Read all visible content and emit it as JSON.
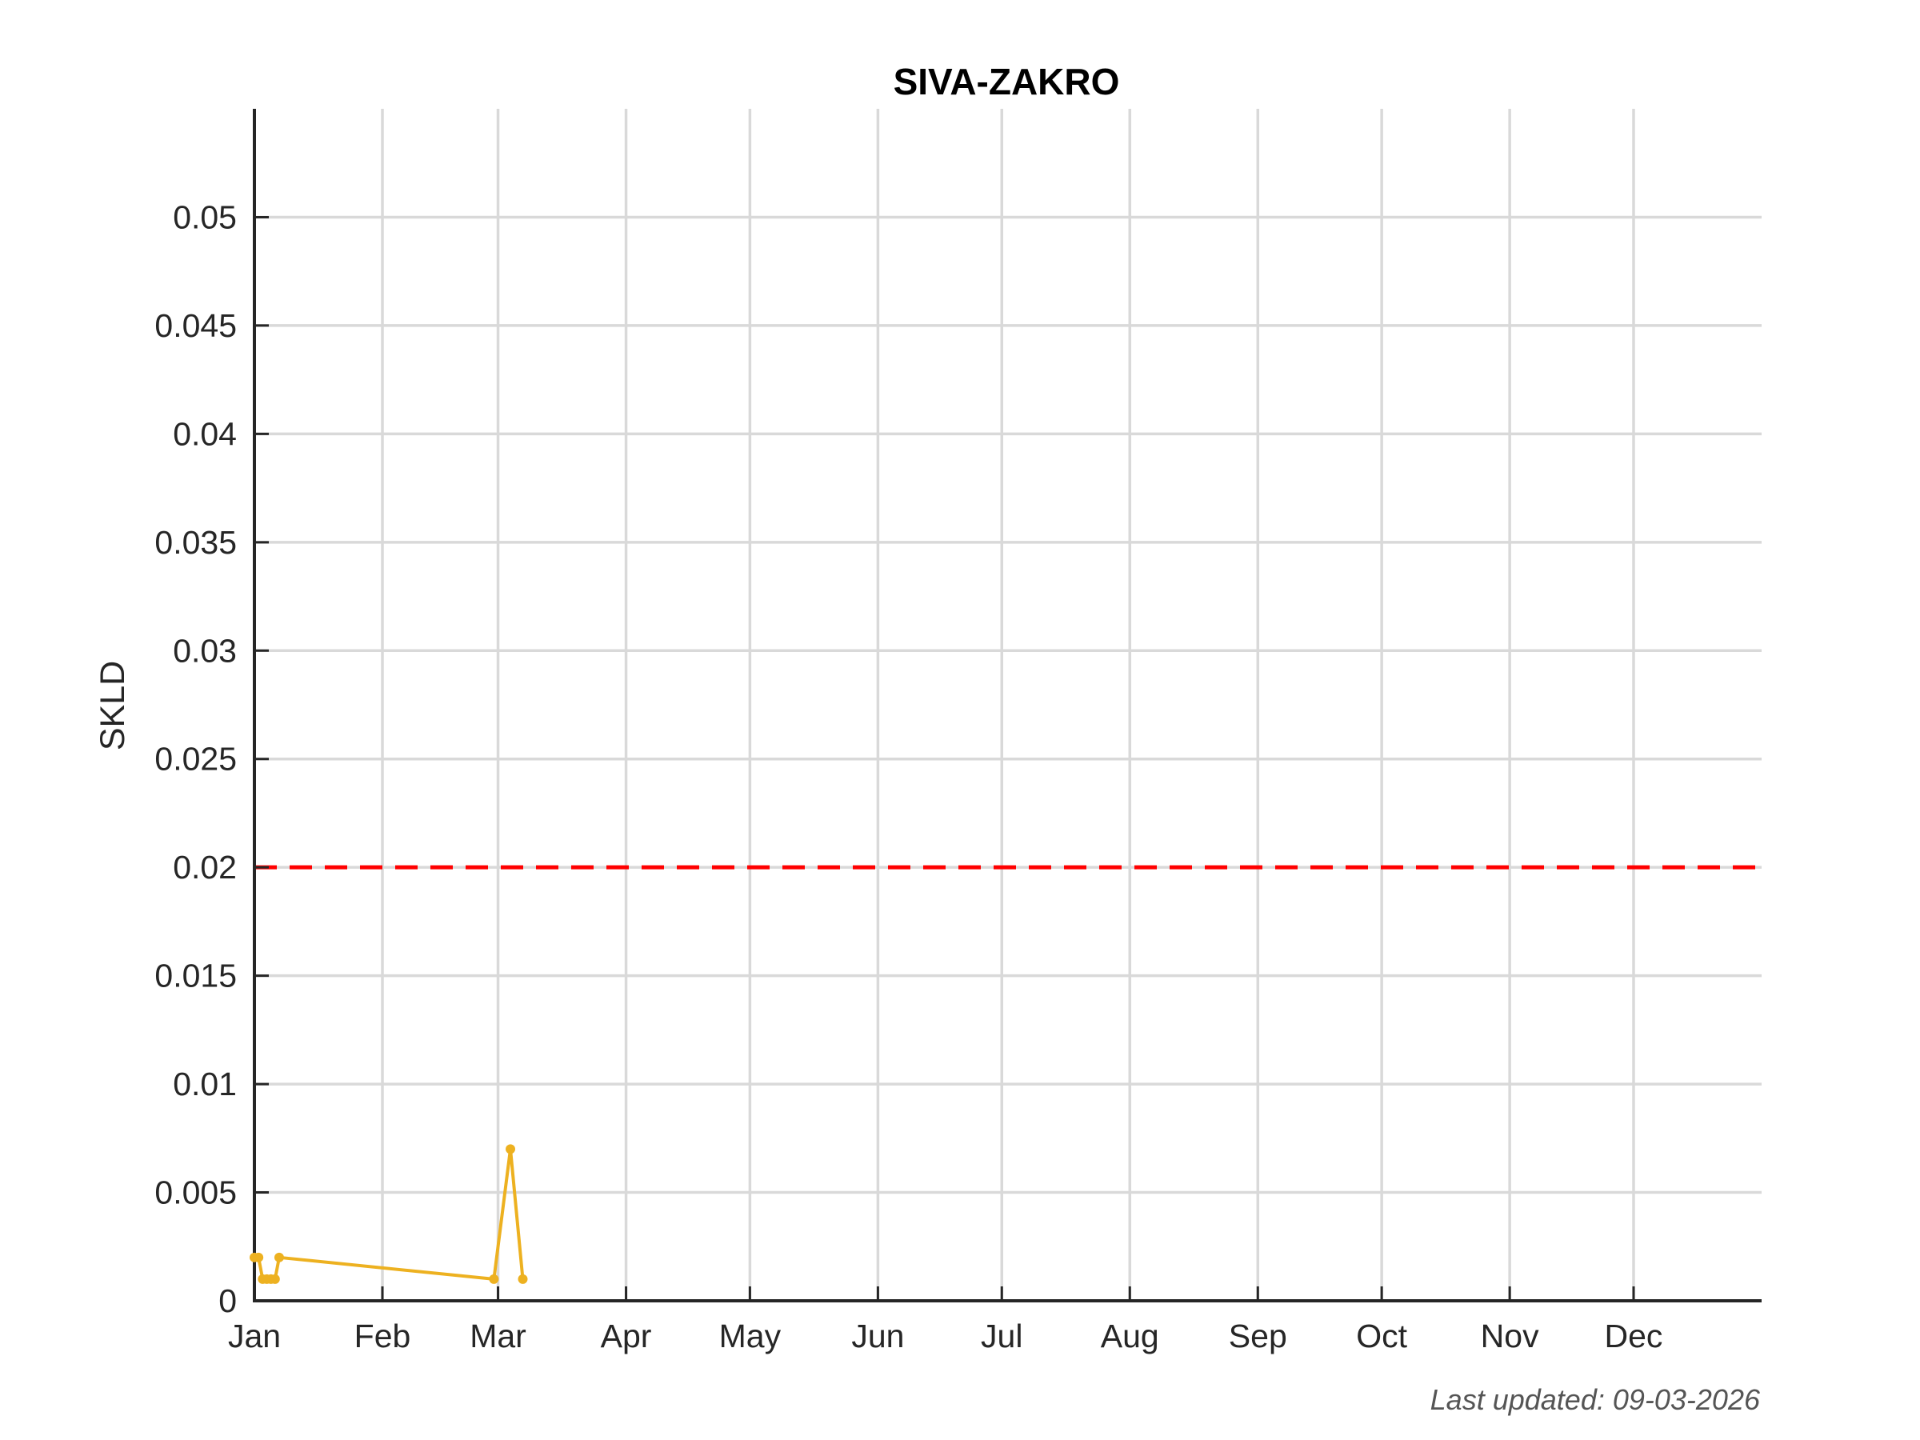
{
  "chart_data": {
    "type": "line",
    "title": "SIVA-ZAKRO",
    "xlabel": "",
    "ylabel": "SKLD",
    "x_ticks": [
      "Jan",
      "Feb",
      "Mar",
      "Apr",
      "May",
      "Jun",
      "Jul",
      "Aug",
      "Sep",
      "Oct",
      "Nov",
      "Dec"
    ],
    "y_ticks": [
      "0",
      "0.005",
      "0.01",
      "0.015",
      "0.02",
      "0.025",
      "0.03",
      "0.035",
      "0.04",
      "0.045",
      "0.05"
    ],
    "ylim": [
      0,
      0.055
    ],
    "xlim": [
      "2026-01-01",
      "2027-01-01"
    ],
    "grid": true,
    "series": [
      {
        "color": "#EDB120",
        "marker": "dot",
        "points": [
          {
            "x": "2026-01-01",
            "y": 0.002
          },
          {
            "x": "2026-01-02",
            "y": 0.002
          },
          {
            "x": "2026-01-03",
            "y": 0.001
          },
          {
            "x": "2026-01-04",
            "y": 0.001
          },
          {
            "x": "2026-01-05",
            "y": 0.001
          },
          {
            "x": "2026-01-06",
            "y": 0.001
          },
          {
            "x": "2026-01-07",
            "y": 0.002
          },
          {
            "x": "2026-02-28",
            "y": 0.001
          },
          {
            "x": "2026-03-04",
            "y": 0.007
          },
          {
            "x": "2026-03-07",
            "y": 0.001
          }
        ]
      }
    ],
    "reference_lines": [
      {
        "y": 0.02,
        "color": "#FF0000",
        "style": "dashed"
      }
    ]
  },
  "footnote": "Last updated: 09-03-2026"
}
